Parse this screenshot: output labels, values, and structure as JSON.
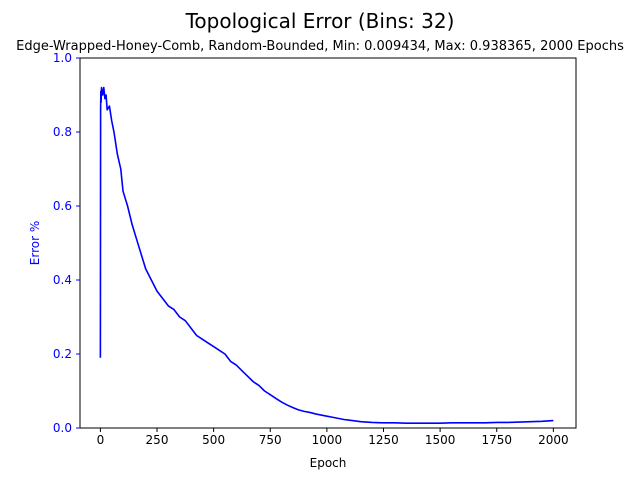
{
  "chart_data": {
    "type": "line",
    "title": "Topological Error (Bins: 32)",
    "subtitle": "Edge-Wrapped-Honey-Comb, Random-Bounded, Min: 0.009434, Max: 0.938365, 2000 Epochs",
    "xlabel": "Epoch",
    "ylabel": "Error %",
    "xlim": [
      -90,
      2100
    ],
    "ylim": [
      0.0,
      1.0
    ],
    "xticks": [
      0,
      250,
      500,
      750,
      1000,
      1250,
      1500,
      1750,
      2000
    ],
    "yticks": [
      0.0,
      0.2,
      0.4,
      0.6,
      0.8,
      1.0
    ],
    "xtick_labels": [
      "0",
      "250",
      "500",
      "750",
      "1000",
      "1250",
      "1500",
      "1750",
      "2000"
    ],
    "ytick_labels": [
      "0.0",
      "0.2",
      "0.4",
      "0.6",
      "0.8",
      "1.0"
    ],
    "grid": false,
    "series": [
      {
        "color": "#0000ff",
        "x": [
          0,
          1,
          2,
          3,
          5,
          10,
          15,
          20,
          25,
          30,
          40,
          50,
          60,
          75,
          90,
          100,
          120,
          140,
          160,
          180,
          200,
          225,
          250,
          275,
          300,
          325,
          350,
          375,
          400,
          425,
          450,
          475,
          500,
          525,
          550,
          575,
          600,
          625,
          650,
          675,
          700,
          725,
          750,
          775,
          800,
          825,
          850,
          875,
          900,
          925,
          950,
          975,
          1000,
          1025,
          1050,
          1075,
          1100,
          1125,
          1150,
          1175,
          1200,
          1250,
          1300,
          1350,
          1400,
          1450,
          1500,
          1550,
          1600,
          1650,
          1700,
          1750,
          1800,
          1850,
          1900,
          1950,
          2000
        ],
        "y": [
          0.19,
          0.86,
          0.91,
          0.88,
          0.92,
          0.9,
          0.92,
          0.89,
          0.9,
          0.86,
          0.87,
          0.83,
          0.8,
          0.74,
          0.7,
          0.64,
          0.6,
          0.55,
          0.51,
          0.47,
          0.43,
          0.4,
          0.37,
          0.35,
          0.33,
          0.32,
          0.3,
          0.29,
          0.27,
          0.25,
          0.24,
          0.23,
          0.22,
          0.21,
          0.2,
          0.18,
          0.17,
          0.155,
          0.14,
          0.125,
          0.115,
          0.1,
          0.09,
          0.08,
          0.07,
          0.062,
          0.055,
          0.049,
          0.045,
          0.042,
          0.038,
          0.035,
          0.032,
          0.029,
          0.026,
          0.023,
          0.021,
          0.019,
          0.017,
          0.016,
          0.015,
          0.014,
          0.014,
          0.013,
          0.013,
          0.013,
          0.013,
          0.014,
          0.014,
          0.014,
          0.014,
          0.015,
          0.015,
          0.016,
          0.017,
          0.018,
          0.02
        ]
      }
    ]
  }
}
